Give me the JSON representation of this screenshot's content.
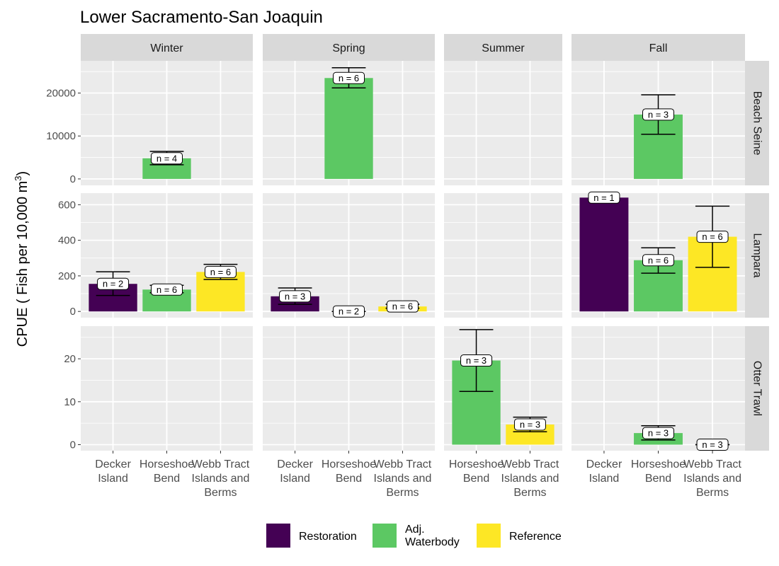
{
  "chart_data": {
    "type": "bar",
    "title": "Lower Sacramento-San Joaquin",
    "ylabel": "CPUE ( Fish per 10,000 m",
    "ylabel_sup": "3",
    "ylabel_close": ")",
    "seasons": [
      {
        "name": "Winter",
        "sites": [
          {
            "key": "decker",
            "label": [
              "Decker",
              "Island"
            ]
          },
          {
            "key": "horseshoe",
            "label": [
              "Horseshoe",
              "Bend"
            ]
          },
          {
            "key": "webb",
            "label": [
              "Webb Tract",
              "Islands and",
              "Berms"
            ]
          }
        ]
      },
      {
        "name": "Spring",
        "sites": [
          {
            "key": "decker",
            "label": [
              "Decker",
              "Island"
            ]
          },
          {
            "key": "horseshoe",
            "label": [
              "Horseshoe",
              "Bend"
            ]
          },
          {
            "key": "webb",
            "label": [
              "Webb Tract",
              "Islands and",
              "Berms"
            ]
          }
        ]
      },
      {
        "name": "Summer",
        "sites": [
          {
            "key": "horseshoe",
            "label": [
              "Horseshoe",
              "Bend"
            ]
          },
          {
            "key": "webb",
            "label": [
              "Webb Tract",
              "Islands and",
              "Berms"
            ]
          }
        ]
      },
      {
        "name": "Fall",
        "sites": [
          {
            "key": "decker",
            "label": [
              "Decker",
              "Island"
            ]
          },
          {
            "key": "horseshoe",
            "label": [
              "Horseshoe",
              "Bend"
            ]
          },
          {
            "key": "webb",
            "label": [
              "Webb Tract",
              "Islands and",
              "Berms"
            ]
          }
        ]
      }
    ],
    "methods": [
      {
        "name": "Beach Seine",
        "ylim": [
          -1500,
          27500
        ],
        "ticks": [
          0,
          10000,
          20000
        ]
      },
      {
        "name": "Lampara",
        "ylim": [
          -35,
          665
        ],
        "ticks": [
          0,
          200,
          400,
          600
        ]
      },
      {
        "name": "Otter Trawl",
        "ylim": [
          -1.4,
          27.6
        ],
        "ticks": [
          0,
          10,
          20
        ]
      }
    ],
    "legend": {
      "position": "bottom",
      "items": [
        {
          "key": "Restoration",
          "label": [
            "Restoration"
          ],
          "color": "#440154"
        },
        {
          "key": "Adj. Waterbody",
          "label": [
            "Adj.",
            "Waterbody"
          ],
          "color": "#5CC863"
        },
        {
          "key": "Reference",
          "label": [
            "Reference"
          ],
          "color": "#FDE725"
        }
      ]
    },
    "data": [
      {
        "method": "Beach Seine",
        "season": "Winter",
        "site": "horseshoe",
        "type": "Adj. Waterbody",
        "value": 4800,
        "low": 3300,
        "high": 6400,
        "n": "n = 4"
      },
      {
        "method": "Beach Seine",
        "season": "Spring",
        "site": "horseshoe",
        "type": "Adj. Waterbody",
        "value": 23500,
        "low": 21200,
        "high": 25900,
        "n": "n = 6"
      },
      {
        "method": "Beach Seine",
        "season": "Fall",
        "site": "horseshoe",
        "type": "Adj. Waterbody",
        "value": 15000,
        "low": 10400,
        "high": 19600,
        "n": "n = 3"
      },
      {
        "method": "Lampara",
        "season": "Winter",
        "site": "decker",
        "type": "Restoration",
        "value": 155,
        "low": 90,
        "high": 223,
        "n": "n = 2"
      },
      {
        "method": "Lampara",
        "season": "Winter",
        "site": "horseshoe",
        "type": "Adj. Waterbody",
        "value": 123,
        "low": 105,
        "high": 147,
        "n": "n = 6"
      },
      {
        "method": "Lampara",
        "season": "Winter",
        "site": "webb",
        "type": "Reference",
        "value": 222,
        "low": 180,
        "high": 265,
        "n": "n = 6"
      },
      {
        "method": "Lampara",
        "season": "Spring",
        "site": "decker",
        "type": "Restoration",
        "value": 85,
        "low": 40,
        "high": 132,
        "n": "n = 3"
      },
      {
        "method": "Lampara",
        "season": "Spring",
        "site": "horseshoe",
        "type": "Adj. Waterbody",
        "value": 0,
        "low": 0,
        "high": 0,
        "n": "n = 2"
      },
      {
        "method": "Lampara",
        "season": "Spring",
        "site": "webb",
        "type": "Reference",
        "value": 28,
        "low": 18,
        "high": 40,
        "n": "n = 6"
      },
      {
        "method": "Lampara",
        "season": "Fall",
        "site": "decker",
        "type": "Restoration",
        "value": 640,
        "low": null,
        "high": null,
        "n": "n = 1"
      },
      {
        "method": "Lampara",
        "season": "Fall",
        "site": "horseshoe",
        "type": "Adj. Waterbody",
        "value": 288,
        "low": 215,
        "high": 358,
        "n": "n = 6"
      },
      {
        "method": "Lampara",
        "season": "Fall",
        "site": "webb",
        "type": "Reference",
        "value": 420,
        "low": 248,
        "high": 592,
        "n": "n = 6"
      },
      {
        "method": "Otter Trawl",
        "season": "Summer",
        "site": "horseshoe",
        "type": "Adj. Waterbody",
        "value": 19.6,
        "low": 12.4,
        "high": 26.8,
        "n": "n = 3"
      },
      {
        "method": "Otter Trawl",
        "season": "Summer",
        "site": "webb",
        "type": "Reference",
        "value": 4.7,
        "low": 3.0,
        "high": 6.4,
        "n": "n = 3"
      },
      {
        "method": "Otter Trawl",
        "season": "Fall",
        "site": "horseshoe",
        "type": "Adj. Waterbody",
        "value": 2.7,
        "low": 1.1,
        "high": 4.4,
        "n": "n = 3"
      },
      {
        "method": "Otter Trawl",
        "season": "Fall",
        "site": "webb",
        "type": "Reference",
        "value": 0,
        "low": 0,
        "high": 0,
        "n": "n = 3"
      }
    ]
  }
}
